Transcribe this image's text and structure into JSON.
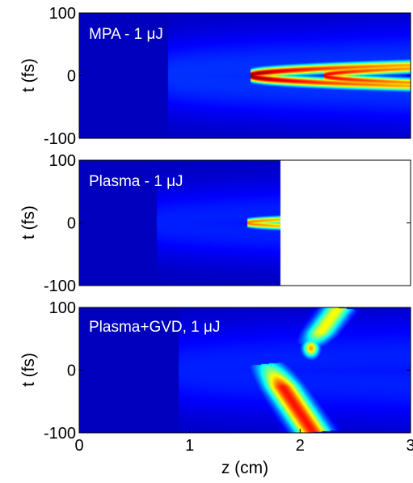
{
  "chart_data": [
    {
      "type": "heatmap",
      "label": "MPA - 1 μJ",
      "ylabel": "t (fs)",
      "xlim": [
        0,
        3
      ],
      "ylim": [
        -100,
        100
      ],
      "yticks": [
        {
          "value": 100,
          "label": "100"
        },
        {
          "value": 0,
          "label": "0"
        },
        {
          "value": -100,
          "label": "-100"
        }
      ],
      "colors": {
        "background": "#00158f",
        "peak": "#7a0000"
      },
      "data_extent_z": 3,
      "features": [
        {
          "shape": "parabola",
          "vertex_z": 1.55,
          "curvature": 0.0052,
          "width_t": 5.5,
          "intensity": 1.0
        },
        {
          "shape": "parabola",
          "vertex_z": 2.22,
          "curvature": 0.0062,
          "width_t": 5.0,
          "intensity": 0.9
        },
        {
          "shape": "halo",
          "vertex_z": 0.8,
          "curvature": 0.004,
          "width_t": 40,
          "intensity": 0.12
        }
      ]
    },
    {
      "type": "heatmap",
      "label": "Plasma - 1 μJ",
      "ylabel": "t (fs)",
      "xlim": [
        0,
        3
      ],
      "ylim": [
        -100,
        100
      ],
      "yticks": [
        {
          "value": 100,
          "label": "100"
        },
        {
          "value": 0,
          "label": "0"
        },
        {
          "value": -100,
          "label": "-100"
        }
      ],
      "colors": {
        "background": "#00158f",
        "peak": "#7a0000"
      },
      "data_extent_z": 1.82,
      "features": [
        {
          "shape": "parabola",
          "vertex_z": 1.52,
          "curvature": 0.012,
          "width_t": 4,
          "intensity": 0.75,
          "t_min": -30,
          "t_max": 15
        },
        {
          "shape": "halo",
          "vertex_z": 0.7,
          "curvature": 0.004,
          "width_t": 35,
          "intensity": 0.1
        }
      ]
    },
    {
      "type": "heatmap",
      "label": "Plasma+GVD, 1 μJ",
      "ylabel": "t (fs)",
      "xlabel": "z (cm)",
      "xlim": [
        0,
        3
      ],
      "ylim": [
        -100,
        100
      ],
      "xticks": [
        {
          "value": 0,
          "label": "0"
        },
        {
          "value": 1,
          "label": "1"
        },
        {
          "value": 2,
          "label": "2"
        },
        {
          "value": 3,
          "label": "3"
        }
      ],
      "yticks": [
        {
          "value": 100,
          "label": "100"
        },
        {
          "value": 0,
          "label": "0"
        },
        {
          "value": -100,
          "label": "-100"
        }
      ],
      "colors": {
        "background": "#00158f",
        "peak": "#7a0000"
      },
      "data_extent_z": 3,
      "features": [
        {
          "shape": "line",
          "z0": 1.7,
          "t0": 10,
          "z1": 2.12,
          "t1": -100,
          "width_t": 7,
          "intensity": 0.85
        },
        {
          "shape": "line",
          "z0": 2.1,
          "t0": 40,
          "z1": 2.35,
          "t1": 100,
          "width_t": 6,
          "intensity": 0.6
        },
        {
          "shape": "blob",
          "z": 2.1,
          "t": 35,
          "rz": 0.05,
          "rt": 10,
          "intensity": 0.7
        },
        {
          "shape": "halo",
          "vertex_z": 0.9,
          "curvature": 0.004,
          "width_t": 45,
          "intensity": 0.1
        }
      ]
    }
  ]
}
